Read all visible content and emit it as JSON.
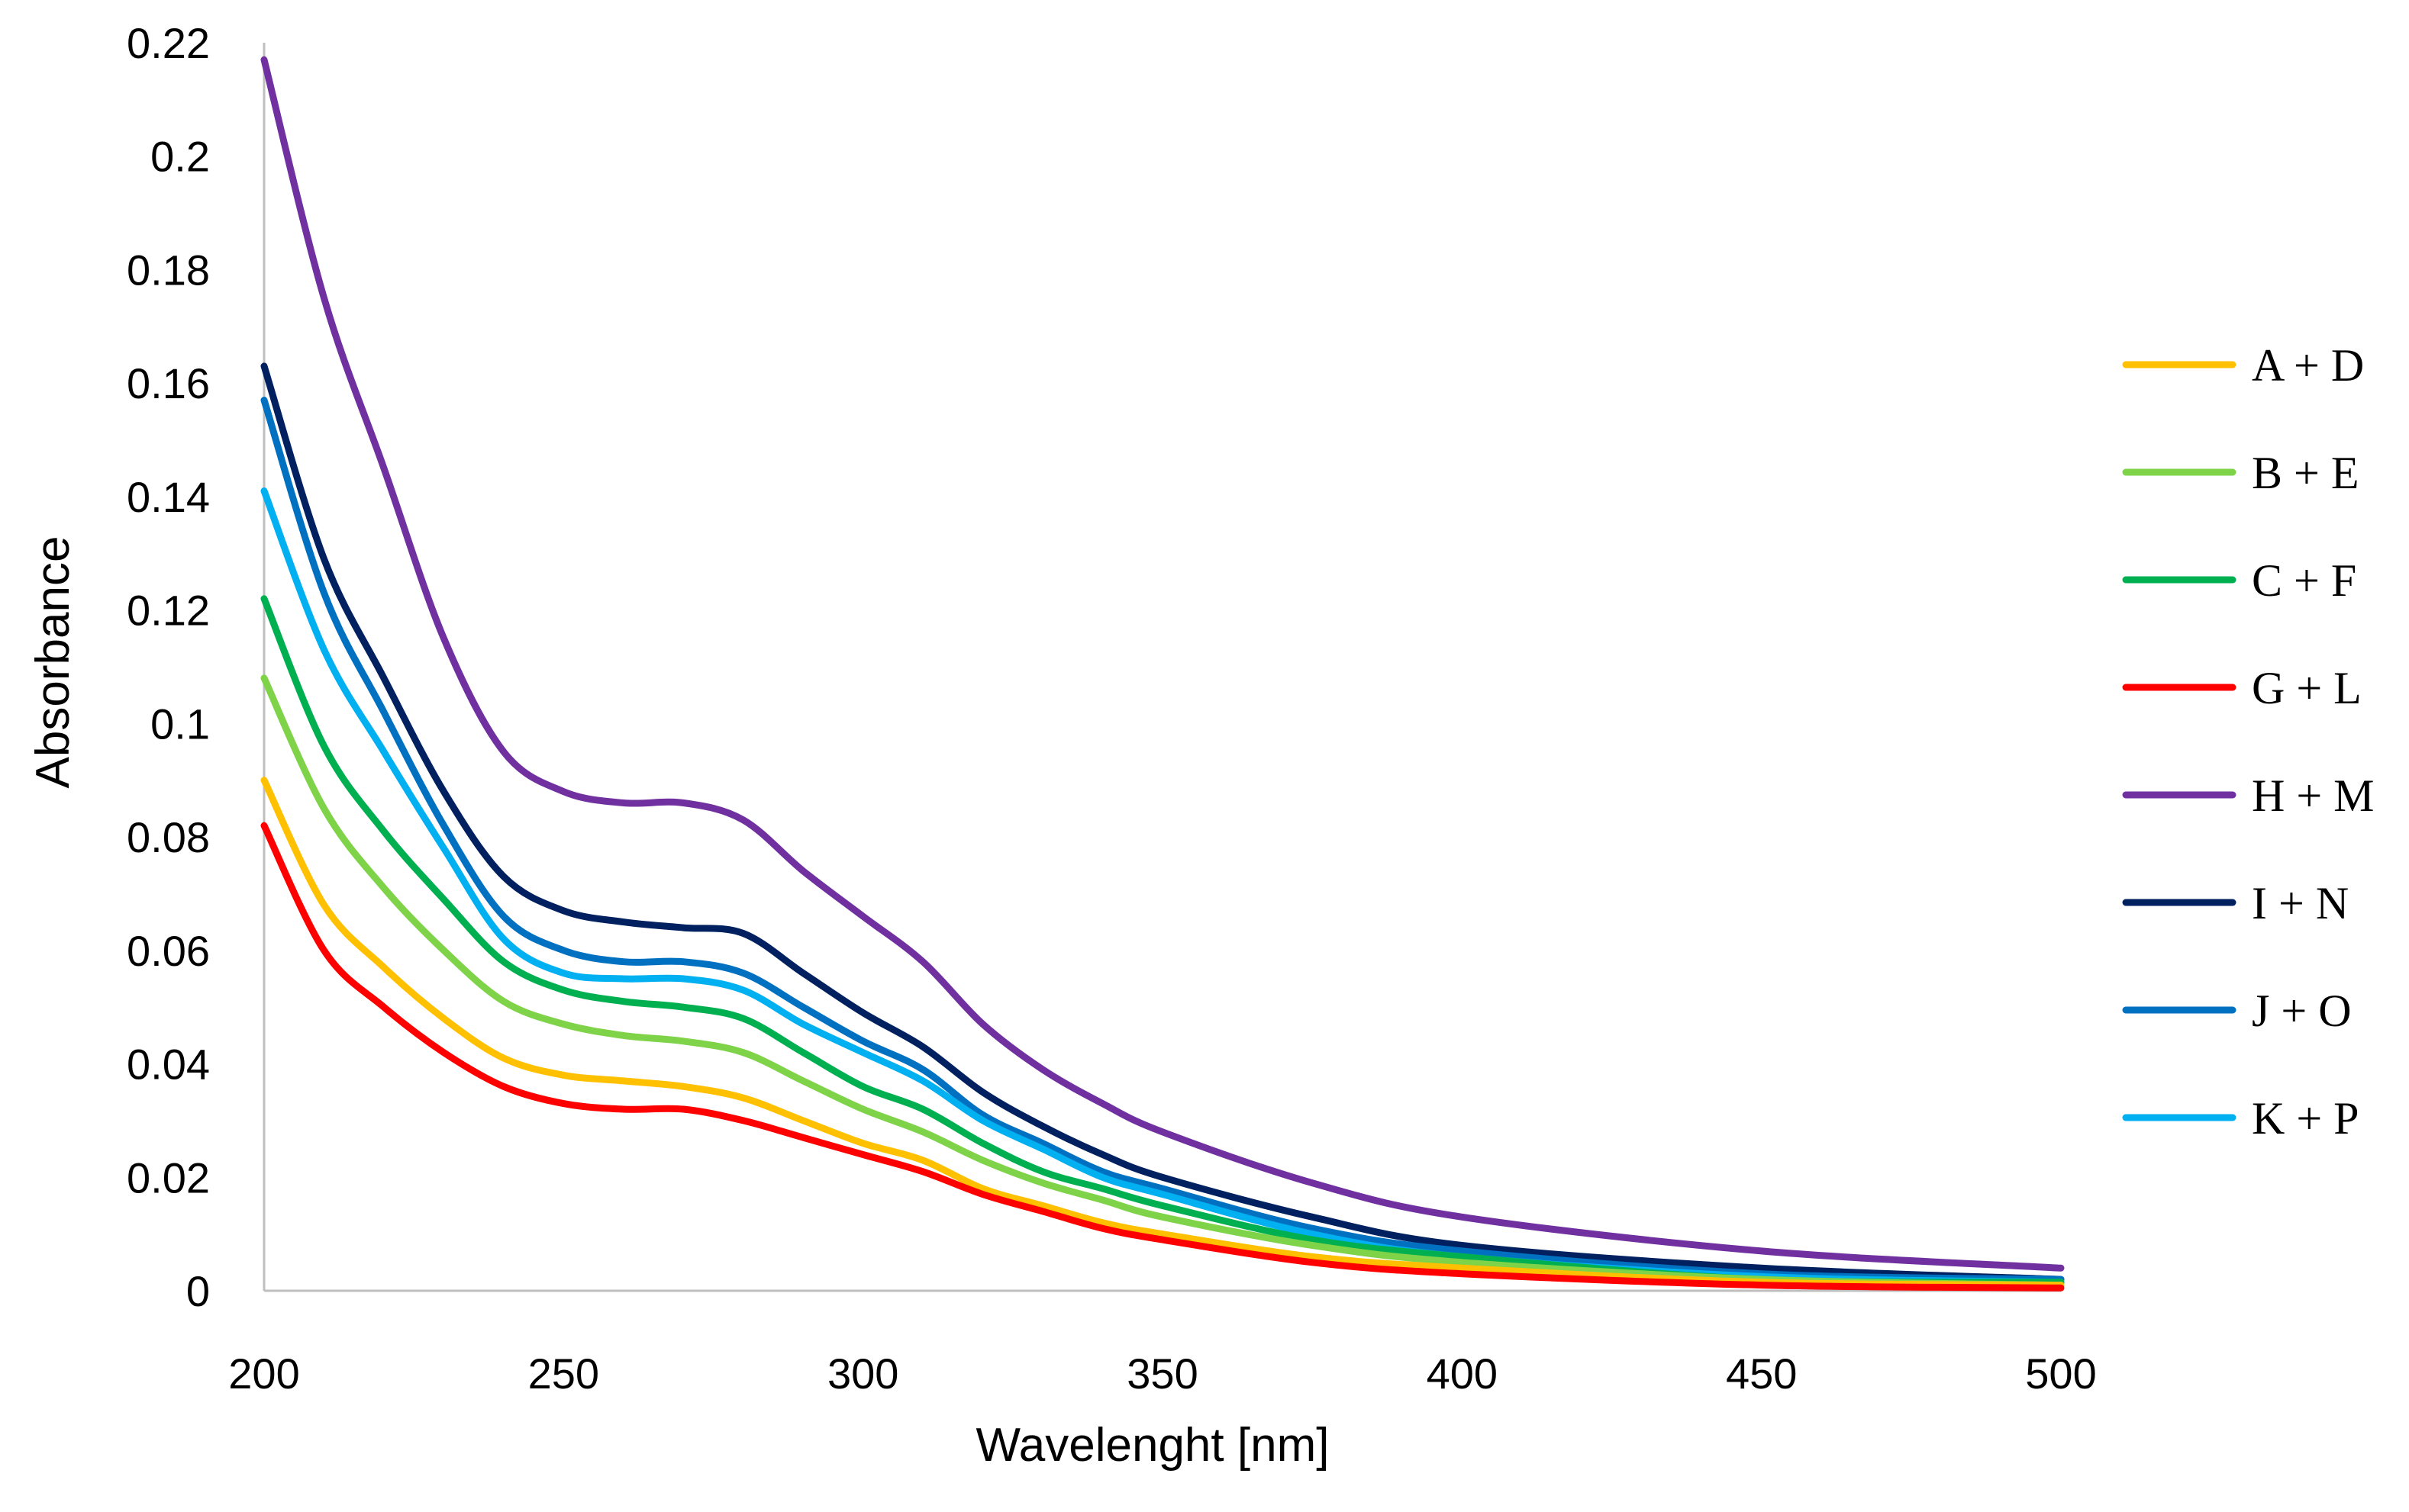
{
  "chart_data": {
    "type": "line",
    "title": "",
    "xlabel": "Wavelenght [nm]",
    "ylabel": "Absorbance",
    "xlim": [
      200,
      500
    ],
    "ylim": [
      0,
      0.22
    ],
    "xticks": [
      200,
      250,
      300,
      350,
      400,
      450,
      500
    ],
    "xtick_labels": [
      "200",
      "250",
      "300",
      "350",
      "400",
      "450",
      "500"
    ],
    "yticks": [
      0,
      0.02,
      0.04,
      0.06,
      0.08,
      0.1,
      0.12,
      0.14,
      0.16,
      0.18,
      0.2,
      0.22
    ],
    "ytick_labels": [
      "0",
      "0.02",
      "0.04",
      "0.06",
      "0.08",
      "0.1",
      "0.12",
      "0.14",
      "0.16",
      "0.18",
      "0.2",
      "0.22"
    ],
    "grid": false,
    "legend_position": "right",
    "x": [
      200,
      210,
      220,
      230,
      240,
      250,
      260,
      270,
      280,
      290,
      300,
      310,
      320,
      330,
      340,
      350,
      375,
      400,
      450,
      500
    ],
    "series": [
      {
        "name": "A + D",
        "color": "#FFC000",
        "values": [
          0.09,
          0.068,
          0.057,
          0.048,
          0.041,
          0.038,
          0.037,
          0.036,
          0.034,
          0.03,
          0.026,
          0.023,
          0.018,
          0.015,
          0.012,
          0.01,
          0.006,
          0.004,
          0.0015,
          0.001
        ]
      },
      {
        "name": "B + E",
        "color": "#7ED348",
        "values": [
          0.108,
          0.085,
          0.071,
          0.06,
          0.051,
          0.047,
          0.045,
          0.044,
          0.042,
          0.037,
          0.032,
          0.028,
          0.023,
          0.019,
          0.016,
          0.013,
          0.008,
          0.005,
          0.002,
          0.001
        ]
      },
      {
        "name": "C + F",
        "color": "#00B050",
        "values": [
          0.122,
          0.096,
          0.081,
          0.069,
          0.058,
          0.053,
          0.051,
          0.05,
          0.048,
          0.042,
          0.036,
          0.032,
          0.026,
          0.021,
          0.018,
          0.015,
          0.009,
          0.006,
          0.002,
          0.0015
        ]
      },
      {
        "name": "G + L",
        "color": "#FF0000",
        "values": [
          0.082,
          0.06,
          0.05,
          0.042,
          0.036,
          0.033,
          0.032,
          0.032,
          0.03,
          0.027,
          0.024,
          0.021,
          0.017,
          0.014,
          0.011,
          0.009,
          0.005,
          0.003,
          0.001,
          0.0005
        ]
      },
      {
        "name": "H + M",
        "color": "#7030A0",
        "values": [
          0.217,
          0.175,
          0.145,
          0.115,
          0.095,
          0.088,
          0.086,
          0.086,
          0.083,
          0.074,
          0.066,
          0.058,
          0.047,
          0.039,
          0.033,
          0.028,
          0.019,
          0.013,
          0.007,
          0.004
        ]
      },
      {
        "name": "I + N",
        "color": "#002060",
        "values": [
          0.163,
          0.129,
          0.108,
          0.088,
          0.073,
          0.067,
          0.065,
          0.064,
          0.063,
          0.056,
          0.049,
          0.043,
          0.035,
          0.029,
          0.024,
          0.02,
          0.013,
          0.008,
          0.004,
          0.002
        ]
      },
      {
        "name": "J + O",
        "color": "#0070C0",
        "values": [
          0.157,
          0.123,
          0.102,
          0.082,
          0.066,
          0.06,
          0.058,
          0.058,
          0.056,
          0.05,
          0.044,
          0.039,
          0.031,
          0.026,
          0.021,
          0.018,
          0.011,
          0.007,
          0.003,
          0.002
        ]
      },
      {
        "name": "K + P",
        "color": "#00B0F0",
        "values": [
          0.141,
          0.113,
          0.095,
          0.078,
          0.062,
          0.056,
          0.055,
          0.055,
          0.053,
          0.047,
          0.042,
          0.037,
          0.03,
          0.025,
          0.02,
          0.017,
          0.01,
          0.006,
          0.0025,
          0.0015
        ]
      }
    ]
  }
}
